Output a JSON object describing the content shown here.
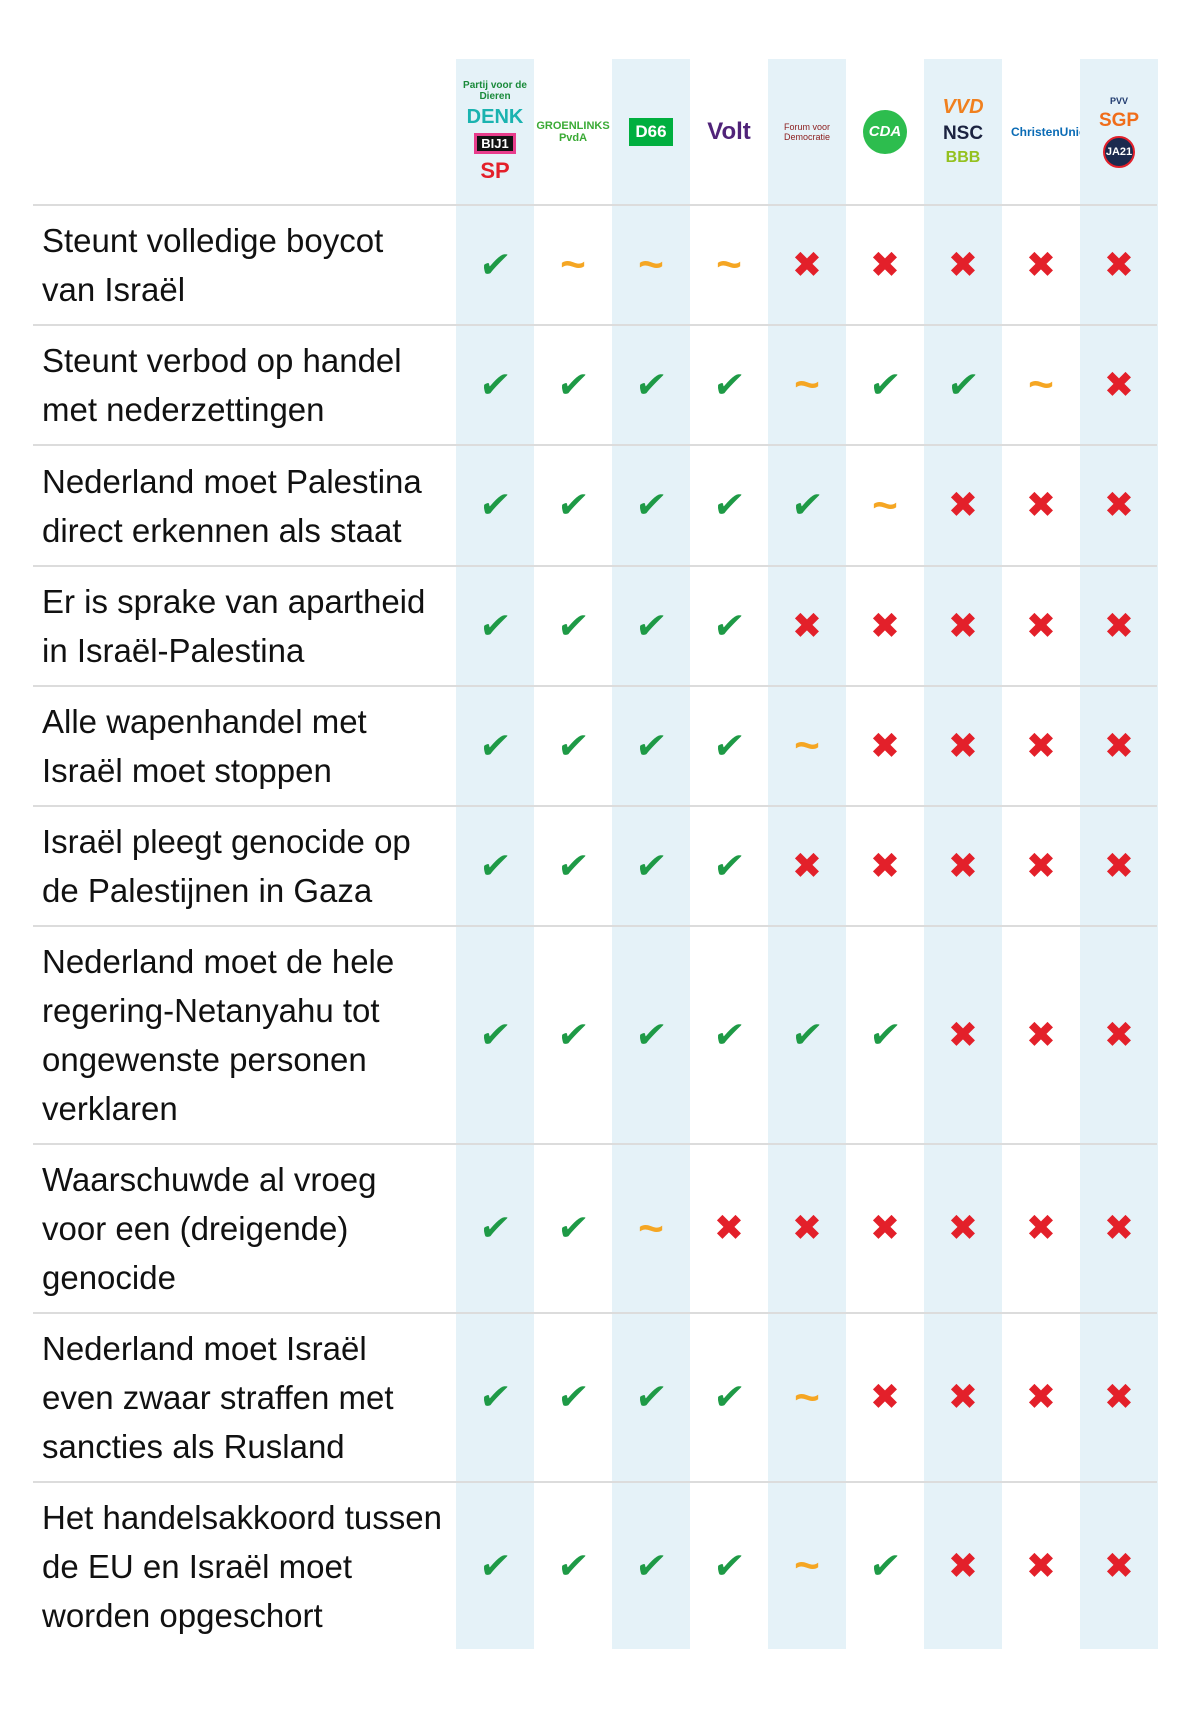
{
  "parties": [
    {
      "logos": [
        "Partij voor de Dieren",
        "DENK",
        "BIJ1",
        "SP"
      ]
    },
    {
      "logos": [
        "GROENLINKS PvdA"
      ]
    },
    {
      "logos": [
        "D66"
      ]
    },
    {
      "logos": [
        "Volt"
      ]
    },
    {
      "logos": [
        "Forum voor Democratie"
      ]
    },
    {
      "logos": [
        "CDA"
      ]
    },
    {
      "logos": [
        "VVD",
        "NSC",
        "BBB"
      ]
    },
    {
      "logos": [
        "ChristenUnie"
      ]
    },
    {
      "logos": [
        "PVV",
        "SGP",
        "JA21"
      ]
    }
  ],
  "colors": {
    "yes": "#1e9a46",
    "partial": "#f5a623",
    "no": "#e3202a",
    "column_bg": "#e5f2f8"
  },
  "symbols": {
    "yes": "✔",
    "partial": "~",
    "no": "✖"
  },
  "rows": [
    {
      "statement": "Steunt volledige boycot van Israël",
      "values": [
        "yes",
        "partial",
        "partial",
        "partial",
        "no",
        "no",
        "no",
        "no",
        "no"
      ]
    },
    {
      "statement": "Steunt verbod op handel met nederzettingen",
      "values": [
        "yes",
        "yes",
        "yes",
        "yes",
        "partial",
        "yes",
        "yes",
        "partial",
        "no"
      ]
    },
    {
      "statement": "Nederland moet Palestina direct erkennen als staat",
      "values": [
        "yes",
        "yes",
        "yes",
        "yes",
        "yes",
        "partial",
        "no",
        "no",
        "no"
      ]
    },
    {
      "statement": "Er is sprake van apartheid in Israël-Palestina",
      "values": [
        "yes",
        "yes",
        "yes",
        "yes",
        "no",
        "no",
        "no",
        "no",
        "no"
      ]
    },
    {
      "statement": "Alle wapenhandel met Israël moet stoppen",
      "values": [
        "yes",
        "yes",
        "yes",
        "yes",
        "partial",
        "no",
        "no",
        "no",
        "no"
      ]
    },
    {
      "statement": "Israël pleegt genocide op de Palestijnen in Gaza",
      "values": [
        "yes",
        "yes",
        "yes",
        "yes",
        "no",
        "no",
        "no",
        "no",
        "no"
      ]
    },
    {
      "statement": "Nederland moet de hele regering-Netanyahu tot ongewenste personen verklaren",
      "values": [
        "yes",
        "yes",
        "yes",
        "yes",
        "yes",
        "yes",
        "no",
        "no",
        "no"
      ]
    },
    {
      "statement": "Waarschuwde al vroeg voor een (dreigende) genocide",
      "values": [
        "yes",
        "yes",
        "partial",
        "no",
        "no",
        "no",
        "no",
        "no",
        "no"
      ]
    },
    {
      "statement": "Nederland moet Israël even zwaar straffen met sancties als Rusland",
      "values": [
        "yes",
        "yes",
        "yes",
        "yes",
        "partial",
        "no",
        "no",
        "no",
        "no"
      ]
    },
    {
      "statement": "Het handelsakkoord tussen de EU en Israël moet worden opgeschort",
      "values": [
        "yes",
        "yes",
        "yes",
        "yes",
        "partial",
        "yes",
        "no",
        "no",
        "no"
      ]
    }
  ]
}
